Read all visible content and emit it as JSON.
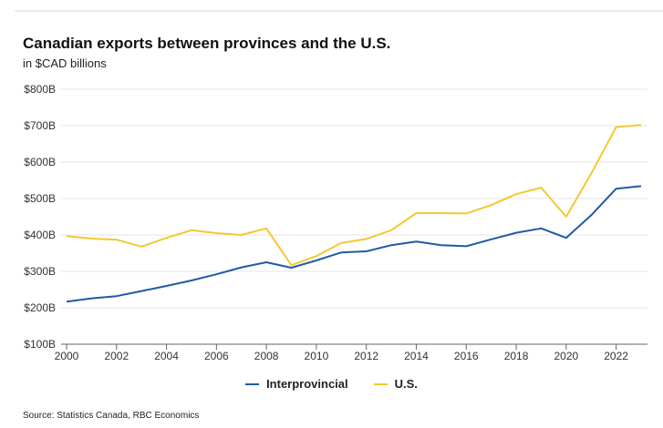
{
  "chart_data": {
    "type": "line",
    "title": "Canadian exports between provinces and the U.S.",
    "subtitle": "in $CAD billions",
    "xlabel": "",
    "ylabel": "",
    "x": [
      2000,
      2001,
      2002,
      2003,
      2004,
      2005,
      2006,
      2007,
      2008,
      2009,
      2010,
      2011,
      2012,
      2013,
      2014,
      2015,
      2016,
      2017,
      2018,
      2019,
      2020,
      2021,
      2022,
      2023
    ],
    "xlim": [
      2000,
      2023
    ],
    "xticks": [
      2000,
      2002,
      2004,
      2006,
      2008,
      2010,
      2012,
      2014,
      2016,
      2018,
      2020,
      2022
    ],
    "xtick_labels": [
      "2000",
      "2002",
      "2004",
      "2006",
      "2008",
      "2010",
      "2012",
      "2014",
      "2016",
      "2018",
      "2020",
      "2022"
    ],
    "ylim": [
      100,
      800
    ],
    "yticks": [
      100,
      200,
      300,
      400,
      500,
      600,
      700,
      800
    ],
    "ytick_labels": [
      "$100B",
      "$200B",
      "$300B",
      "$400B",
      "$500B",
      "$600B",
      "$700B",
      "$800B"
    ],
    "grid": "horizontal",
    "legend_position": "bottom-center",
    "series": [
      {
        "name": "Interprovincial",
        "color": "#1f5ba6",
        "values": [
          217,
          226,
          232,
          246,
          260,
          275,
          292,
          311,
          325,
          310,
          330,
          352,
          355,
          372,
          382,
          372,
          369,
          388,
          406,
          418,
          392,
          454,
          527,
          534
        ]
      },
      {
        "name": "U.S.",
        "color": "#f5c732",
        "values": [
          397,
          390,
          387,
          368,
          392,
          413,
          405,
          400,
          418,
          317,
          342,
          378,
          389,
          413,
          460,
          460,
          459,
          482,
          512,
          530,
          450,
          568,
          696,
          702
        ]
      }
    ],
    "source": "Source: Statistics Canada, RBC Economics"
  }
}
